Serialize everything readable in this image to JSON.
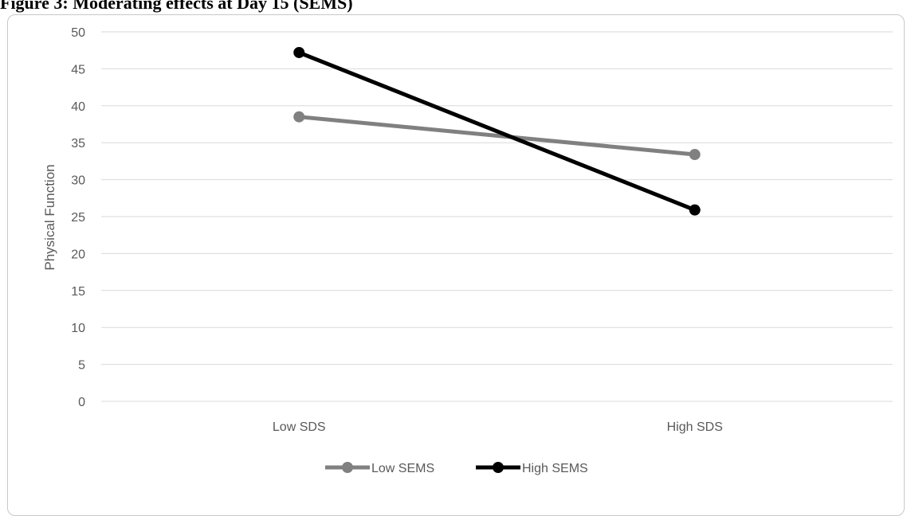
{
  "figure_title": "Figure 3: Moderating effects at Day 15 (SEMS)",
  "chart_data": {
    "type": "line",
    "title": "",
    "xlabel": "",
    "ylabel": "Physical Function",
    "categories": [
      "Low SDS",
      "High SDS"
    ],
    "ylim": [
      0,
      50
    ],
    "yticks": [
      0,
      5,
      10,
      15,
      20,
      25,
      30,
      35,
      40,
      45,
      50
    ],
    "grid": true,
    "legend_position": "bottom",
    "series": [
      {
        "name": "Low SEMS",
        "values": [
          38.5,
          33.4
        ],
        "color": "#808080"
      },
      {
        "name": "High SEMS",
        "values": [
          47.2,
          25.9
        ],
        "color": "#000000"
      }
    ]
  }
}
